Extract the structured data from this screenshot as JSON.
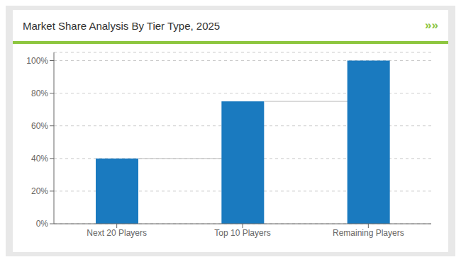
{
  "chart_data": {
    "type": "bar",
    "title": "Market Share Analysis By Tier Type, 2025",
    "annotations": [
      "»»"
    ],
    "categories": [
      "Next 20 Players",
      "Top 10 Players",
      "Remaining Players"
    ],
    "values": [
      40,
      75,
      100
    ],
    "color": "#1a7abf",
    "ylim": [
      0,
      105
    ],
    "yticks": [
      {
        "value": 0,
        "label": "0%"
      },
      {
        "value": 20,
        "label": "20%"
      },
      {
        "value": 40,
        "label": "40%"
      },
      {
        "value": 60,
        "label": "60%"
      },
      {
        "value": 80,
        "label": "80%"
      },
      {
        "value": 100,
        "label": "100%"
      }
    ],
    "grid": true
  }
}
